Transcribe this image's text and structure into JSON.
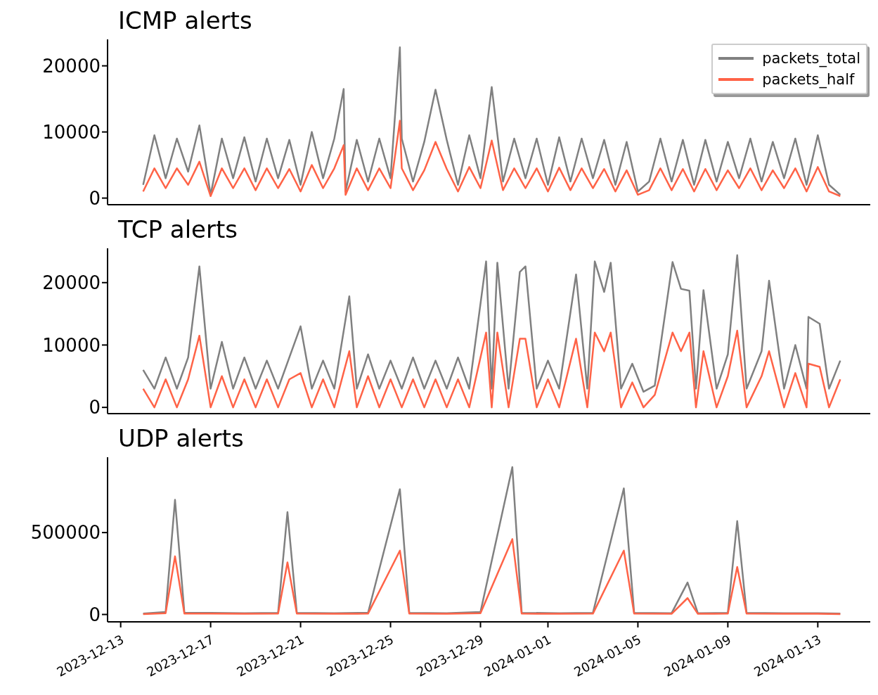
{
  "chart_data": [
    {
      "type": "line",
      "title": "ICMP alerts",
      "legend": "top right",
      "tick_labels": "y",
      "xlim": [
        "2023-12-12T10:00",
        "2024-01-15T08:00"
      ],
      "ylim": [
        -1000,
        24000
      ],
      "yticks": [
        0,
        10000,
        20000
      ],
      "xticks": [
        "2023-12-13",
        "2023-12-17",
        "2023-12-21",
        "2023-12-25",
        "2023-12-29",
        "2024-01-01",
        "2024-01-05",
        "2024-01-09",
        "2024-01-13"
      ],
      "x": [
        "2023-12-14T00:00",
        "2023-12-14T12:00",
        "2023-12-15T00:00",
        "2023-12-15T12:00",
        "2023-12-16T00:00",
        "2023-12-16T12:00",
        "2023-12-17T00:00",
        "2023-12-17T12:00",
        "2023-12-18T00:00",
        "2023-12-18T12:00",
        "2023-12-19T00:00",
        "2023-12-19T12:00",
        "2023-12-20T00:00",
        "2023-12-20T12:00",
        "2023-12-21T00:00",
        "2023-12-21T12:00",
        "2023-12-22T00:00",
        "2023-12-22T12:00",
        "2023-12-22T22:00",
        "2023-12-23T00:00",
        "2023-12-23T12:00",
        "2023-12-24T00:00",
        "2023-12-24T12:00",
        "2023-12-25T00:00",
        "2023-12-25T10:00",
        "2023-12-25T12:00",
        "2023-12-26T00:00",
        "2023-12-26T12:00",
        "2023-12-27T00:00",
        "2023-12-27T12:00",
        "2023-12-28T00:00",
        "2023-12-28T12:00",
        "2023-12-29T00:00",
        "2023-12-29T12:00",
        "2023-12-30T00:00",
        "2023-12-30T12:00",
        "2023-12-31T00:00",
        "2023-12-31T12:00",
        "2024-01-01T00:00",
        "2024-01-01T12:00",
        "2024-01-02T00:00",
        "2024-01-02T12:00",
        "2024-01-03T00:00",
        "2024-01-03T12:00",
        "2024-01-04T00:00",
        "2024-01-04T12:00",
        "2024-01-05T00:00",
        "2024-01-05T12:00",
        "2024-01-06T00:00",
        "2024-01-06T12:00",
        "2024-01-07T00:00",
        "2024-01-07T12:00",
        "2024-01-08T00:00",
        "2024-01-08T12:00",
        "2024-01-09T00:00",
        "2024-01-09T12:00",
        "2024-01-10T00:00",
        "2024-01-10T12:00",
        "2024-01-11T00:00",
        "2024-01-11T12:00",
        "2024-01-12T00:00",
        "2024-01-12T12:00",
        "2024-01-13T00:00",
        "2024-01-13T12:00",
        "2024-01-14T00:00"
      ],
      "series": [
        {
          "name": "packets_total",
          "color": "#808080",
          "values": [
            2000,
            9500,
            3000,
            9000,
            4000,
            11000,
            500,
            9000,
            3000,
            9200,
            2500,
            9000,
            3000,
            8800,
            2000,
            10000,
            3000,
            9000,
            16500,
            1000,
            8800,
            2500,
            9000,
            3000,
            22800,
            9000,
            2500,
            8500,
            16400,
            8800,
            2000,
            9500,
            3000,
            16800,
            2500,
            9000,
            3000,
            9000,
            2000,
            9200,
            2500,
            9000,
            3000,
            8800,
            2000,
            8500,
            1000,
            2500,
            9000,
            2500,
            8800,
            2000,
            8800,
            2500,
            8500,
            3000,
            9000,
            2500,
            8500,
            3000,
            9000,
            2000,
            9500,
            2000,
            500
          ]
        },
        {
          "name": "packets_half",
          "color": "#ff6347",
          "values": [
            1000,
            4500,
            1500,
            4500,
            2000,
            5500,
            300,
            4500,
            1500,
            4500,
            1200,
            4500,
            1500,
            4400,
            1000,
            5000,
            1500,
            4500,
            8000,
            500,
            4500,
            1200,
            4500,
            1500,
            11700,
            4500,
            1200,
            4200,
            8500,
            4400,
            1000,
            4700,
            1500,
            8700,
            1200,
            4500,
            1500,
            4500,
            1000,
            4600,
            1200,
            4500,
            1500,
            4400,
            1000,
            4200,
            500,
            1200,
            4500,
            1200,
            4400,
            1000,
            4400,
            1200,
            4200,
            1500,
            4500,
            1200,
            4200,
            1500,
            4500,
            1000,
            4700,
            1000,
            300
          ]
        }
      ]
    },
    {
      "type": "line",
      "title": "TCP alerts",
      "tick_labels": "y",
      "xlim": [
        "2023-12-12T10:00",
        "2024-01-15T08:00"
      ],
      "ylim": [
        -1000,
        25500
      ],
      "yticks": [
        0,
        10000,
        20000
      ],
      "xticks": [
        "2023-12-13",
        "2023-12-17",
        "2023-12-21",
        "2023-12-25",
        "2023-12-29",
        "2024-01-01",
        "2024-01-05",
        "2024-01-09",
        "2024-01-13"
      ],
      "x": [
        "2023-12-14T00:00",
        "2023-12-14T12:00",
        "2023-12-15T00:00",
        "2023-12-15T12:00",
        "2023-12-16T00:00",
        "2023-12-16T12:00",
        "2023-12-17T00:00",
        "2023-12-17T12:00",
        "2023-12-18T00:00",
        "2023-12-18T12:00",
        "2023-12-19T00:00",
        "2023-12-19T12:00",
        "2023-12-20T00:00",
        "2023-12-20T12:00",
        "2023-12-21T00:00",
        "2023-12-21T12:00",
        "2023-12-22T00:00",
        "2023-12-22T12:00",
        "2023-12-23T04:00",
        "2023-12-23T12:00",
        "2023-12-24T00:00",
        "2023-12-24T12:00",
        "2023-12-25T00:00",
        "2023-12-25T12:00",
        "2023-12-26T00:00",
        "2023-12-26T12:00",
        "2023-12-27T00:00",
        "2023-12-27T12:00",
        "2023-12-28T00:00",
        "2023-12-28T12:00",
        "2023-12-29T06:00",
        "2023-12-29T12:00",
        "2023-12-29T18:00",
        "2023-12-30T06:00",
        "2023-12-30T18:00",
        "2023-12-31T00:00",
        "2023-12-31T12:00",
        "2024-01-01T00:00",
        "2024-01-01T12:00",
        "2024-01-02T06:00",
        "2024-01-02T18:00",
        "2024-01-03T02:00",
        "2024-01-03T12:00",
        "2024-01-03T19:00",
        "2024-01-04T06:00",
        "2024-01-04T18:00",
        "2024-01-05T06:00",
        "2024-01-05T18:00",
        "2024-01-06T13:00",
        "2024-01-06T22:00",
        "2024-01-07T07:00",
        "2024-01-07T14:00",
        "2024-01-07T22:00",
        "2024-01-08T12:00",
        "2024-01-09T00:00",
        "2024-01-09T10:00",
        "2024-01-09T20:00",
        "2024-01-10T12:00",
        "2024-01-10T20:00",
        "2024-01-11T12:00",
        "2024-01-12T00:00",
        "2024-01-12T12:00",
        "2024-01-12T14:00",
        "2024-01-13T02:00",
        "2024-01-13T12:00",
        "2024-01-14T00:00"
      ],
      "series": [
        {
          "color": "#808080",
          "values": [
            6000,
            3000,
            8000,
            3000,
            8000,
            22600,
            3000,
            10500,
            3000,
            8000,
            3000,
            7500,
            3000,
            8000,
            13000,
            3000,
            7500,
            3000,
            17800,
            3000,
            8500,
            3000,
            7500,
            3000,
            8000,
            3000,
            7500,
            3000,
            8000,
            3000,
            23400,
            3000,
            23200,
            3000,
            21700,
            22600,
            3000,
            7500,
            3000,
            21300,
            3000,
            23400,
            18500,
            23200,
            3000,
            7000,
            2500,
            3500,
            23300,
            19000,
            18700,
            3000,
            18800,
            3000,
            8500,
            24400,
            3000,
            9000,
            20300,
            3000,
            10000,
            3000,
            14500,
            13400,
            3000,
            7500
          ]
        },
        {
          "color": "#ff6347",
          "values": [
            3000,
            0,
            4500,
            0,
            4500,
            11500,
            0,
            5000,
            0,
            4500,
            0,
            4500,
            0,
            4500,
            5500,
            0,
            4500,
            0,
            9000,
            0,
            5000,
            0,
            4500,
            0,
            4500,
            0,
            4500,
            0,
            4500,
            0,
            12000,
            0,
            12000,
            0,
            11000,
            11000,
            0,
            4500,
            0,
            11000,
            0,
            12000,
            9000,
            12000,
            0,
            4000,
            0,
            2000,
            12000,
            9000,
            12000,
            0,
            9000,
            0,
            5000,
            12300,
            0,
            5000,
            9000,
            0,
            5500,
            0,
            7000,
            6500,
            0,
            4500
          ]
        }
      ]
    },
    {
      "type": "line",
      "title": "UDP alerts",
      "xlim": [
        "2023-12-12T10:00",
        "2024-01-15T08:00"
      ],
      "ylim": [
        -45000,
        960000
      ],
      "yticks": [
        0,
        500000
      ],
      "xticks": [
        "2023-12-13",
        "2023-12-17",
        "2023-12-21",
        "2023-12-25",
        "2023-12-29",
        "2024-01-01",
        "2024-01-05",
        "2024-01-09",
        "2024-01-13"
      ],
      "x": [
        "2023-12-14T00:00",
        "2023-12-15T00:00",
        "2023-12-15T10:00",
        "2023-12-15T20:00",
        "2023-12-17T00:00",
        "2023-12-18T12:00",
        "2023-12-20T00:00",
        "2023-12-20T10:00",
        "2023-12-20T20:00",
        "2023-12-22T12:00",
        "2023-12-24T00:00",
        "2023-12-25T10:00",
        "2023-12-25T20:00",
        "2023-12-27T12:00",
        "2023-12-29T00:00",
        "2023-12-30T10:00",
        "2023-12-30T20:00",
        "2024-01-01T12:00",
        "2024-01-03T00:00",
        "2024-01-04T09:00",
        "2024-01-04T20:00",
        "2024-01-06T12:00",
        "2024-01-07T05:00",
        "2024-01-07T16:00",
        "2024-01-09T00:00",
        "2024-01-09T10:00",
        "2024-01-09T20:00",
        "2024-01-11T12:00",
        "2024-01-13T00:00",
        "2024-01-14T00:00"
      ],
      "series": [
        {
          "color": "#808080",
          "values": [
            5000,
            15000,
            700000,
            10000,
            10000,
            8000,
            10000,
            625000,
            10000,
            8000,
            10000,
            765000,
            10000,
            8000,
            15000,
            900000,
            10000,
            8000,
            10000,
            770000,
            10000,
            8000,
            195000,
            8000,
            10000,
            570000,
            10000,
            8000,
            8000,
            5000
          ]
        },
        {
          "color": "#ff6347",
          "values": [
            2000,
            8000,
            355000,
            5000,
            5000,
            4000,
            5000,
            318000,
            5000,
            4000,
            5000,
            390000,
            5000,
            4000,
            8000,
            460000,
            5000,
            4000,
            5000,
            390000,
            5000,
            4000,
            100000,
            4000,
            5000,
            290000,
            5000,
            4000,
            4000,
            2000
          ]
        }
      ]
    }
  ]
}
